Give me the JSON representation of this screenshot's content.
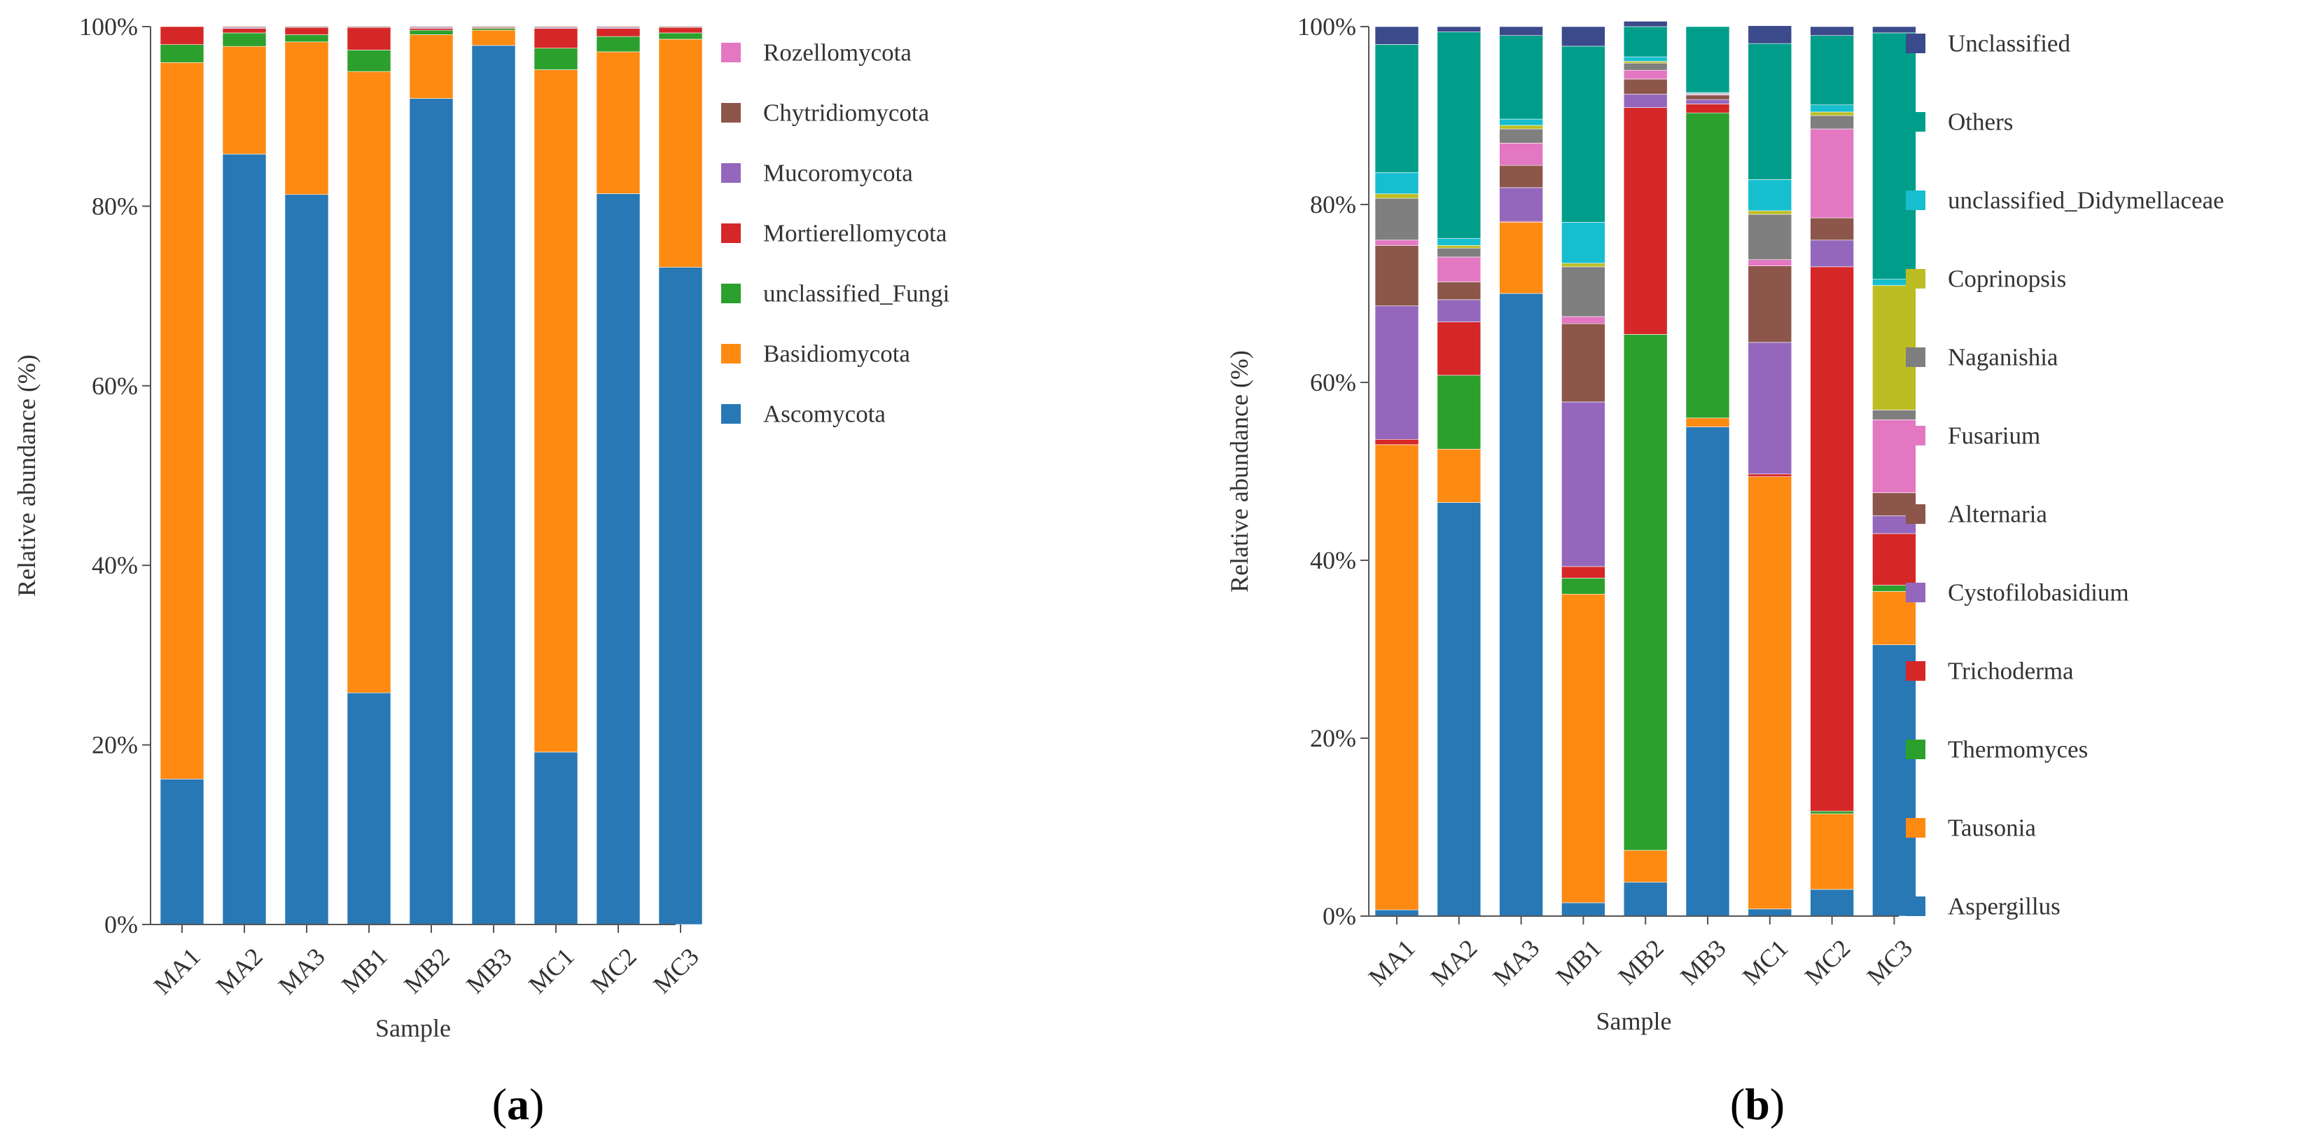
{
  "colors": {
    "blue": "#2878b5",
    "orange": "#ff8a12",
    "green": "#2ca02c",
    "red": "#d62728",
    "purple": "#9467bd",
    "brown": "#8c564b",
    "pink": "#e377c2",
    "gray": "#7f7f7f",
    "olive": "#bcbd22",
    "cyan": "#17becf",
    "teal": "#009e8a",
    "navy": "#3b4a8a"
  },
  "chart_data": [
    {
      "type": "bar",
      "stacked": true,
      "panel_label": "a",
      "title": "",
      "xlabel": "Sample",
      "ylabel": "Relative abundance (%)",
      "ylim": [
        0,
        100
      ],
      "yticks": [
        "0%",
        "20%",
        "40%",
        "60%",
        "80%",
        "100%"
      ],
      "categories": [
        "MA1",
        "MA2",
        "MA3",
        "MB1",
        "MB2",
        "MB3",
        "MC1",
        "MC2",
        "MC3"
      ],
      "legend_position": "right",
      "series": [
        {
          "name": "Ascomycota",
          "color": "#2878b5",
          "values": [
            16.2,
            85.8,
            81.3,
            25.8,
            92.0,
            97.9,
            19.2,
            81.4,
            73.2
          ]
        },
        {
          "name": "Basidiomycota",
          "color": "#ff8a12",
          "values": [
            79.8,
            12.0,
            17.0,
            69.2,
            7.1,
            1.7,
            76.0,
            15.8,
            25.4
          ]
        },
        {
          "name": "unclassified_Fungi",
          "color": "#2ca02c",
          "values": [
            2.0,
            1.5,
            0.8,
            2.4,
            0.5,
            0.2,
            2.4,
            1.7,
            0.7
          ]
        },
        {
          "name": "Mortierellomycota",
          "color": "#d62728",
          "values": [
            2.0,
            0.5,
            0.8,
            2.5,
            0.2,
            0.1,
            2.2,
            0.9,
            0.6
          ]
        },
        {
          "name": "Mucoromycota",
          "color": "#9467bd",
          "values": [
            0.0,
            0.1,
            0.0,
            0.0,
            0.1,
            0.0,
            0.1,
            0.1,
            0.0
          ]
        },
        {
          "name": "Chytridiomycota",
          "color": "#8c564b",
          "values": [
            0.0,
            0.1,
            0.1,
            0.1,
            0.1,
            0.1,
            0.1,
            0.1,
            0.1
          ]
        },
        {
          "name": "Rozellomycota",
          "color": "#e377c2",
          "values": [
            0.0,
            0.0,
            0.0,
            0.0,
            0.0,
            0.0,
            0.0,
            0.0,
            0.0
          ]
        }
      ]
    },
    {
      "type": "bar",
      "stacked": true,
      "panel_label": "b",
      "title": "",
      "xlabel": "Sample",
      "ylabel": "Relative abundance (%)",
      "ylim": [
        0,
        100
      ],
      "yticks": [
        "0%",
        "20%",
        "40%",
        "60%",
        "80%",
        "100%"
      ],
      "categories": [
        "MA1",
        "MA2",
        "MA3",
        "MB1",
        "MB2",
        "MB3",
        "MC1",
        "MC2",
        "MC3"
      ],
      "legend_position": "right",
      "series": [
        {
          "name": "Aspergillus",
          "color": "#2878b5",
          "values": [
            0.7,
            46.5,
            70.0,
            1.5,
            3.8,
            55.0,
            0.8,
            3.0,
            30.5
          ]
        },
        {
          "name": "Tausonia",
          "color": "#ff8a12",
          "values": [
            52.3,
            6.0,
            8.0,
            34.7,
            3.6,
            1.0,
            48.6,
            8.5,
            6.0
          ]
        },
        {
          "name": "Thermomyces",
          "color": "#2ca02c",
          "values": [
            0.0,
            8.3,
            0.0,
            1.8,
            58.0,
            34.3,
            0.0,
            0.3,
            0.7
          ]
        },
        {
          "name": "Trichoderma",
          "color": "#d62728",
          "values": [
            0.6,
            6.0,
            0.1,
            1.3,
            25.5,
            1.0,
            0.3,
            61.2,
            5.8
          ]
        },
        {
          "name": "Cystofilobasidium",
          "color": "#9467bd",
          "values": [
            15.0,
            2.5,
            3.8,
            18.5,
            1.5,
            0.5,
            14.8,
            3.0,
            2.0
          ]
        },
        {
          "name": "Alternaria",
          "color": "#8c564b",
          "values": [
            6.8,
            2.0,
            2.5,
            8.8,
            1.7,
            0.5,
            8.6,
            2.5,
            2.6
          ]
        },
        {
          "name": "Fusarium",
          "color": "#e377c2",
          "values": [
            0.6,
            2.8,
            2.5,
            0.8,
            1.0,
            0.1,
            0.7,
            10.0,
            8.2
          ]
        },
        {
          "name": "Naganishia",
          "color": "#7f7f7f",
          "values": [
            4.7,
            1.0,
            1.6,
            5.6,
            0.8,
            0.1,
            5.1,
            1.5,
            1.1
          ]
        },
        {
          "name": "Coprinopsis",
          "color": "#bcbd22",
          "values": [
            0.5,
            0.3,
            0.4,
            0.4,
            0.2,
            0.0,
            0.4,
            0.4,
            14.0
          ]
        },
        {
          "name": "unclassified_Didymellaceae",
          "color": "#17becf",
          "values": [
            2.4,
            0.8,
            0.7,
            4.6,
            0.5,
            0.1,
            3.5,
            0.8,
            0.7
          ]
        },
        {
          "name": "Others",
          "color": "#009e8a",
          "values": [
            14.4,
            23.2,
            9.4,
            19.8,
            3.4,
            7.4,
            15.3,
            7.8,
            27.7
          ]
        },
        {
          "name": "Unclassified",
          "color": "#3b4a8a",
          "values": [
            2.0,
            0.6,
            1.0,
            2.2,
            0.6,
            0.0,
            2.0,
            1.0,
            0.7
          ]
        }
      ]
    }
  ]
}
